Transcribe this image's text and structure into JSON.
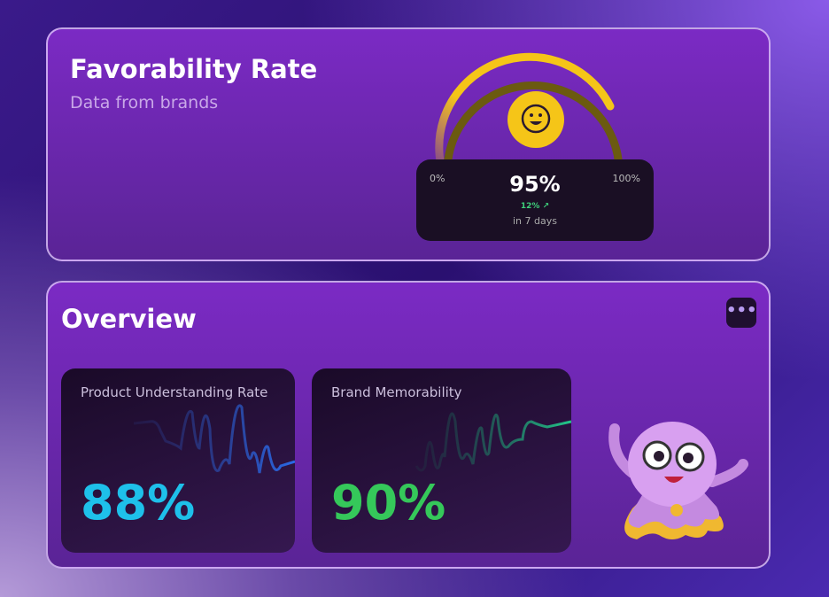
{
  "favorability": {
    "title": "Favorability Rate",
    "subtitle": "Data from brands",
    "value": "95%",
    "value_percent": 95,
    "min_label": "0%",
    "max_label": "100%",
    "delta": "12% ↗",
    "period": "in 7 days",
    "face_icon": "smiley-icon",
    "accent": "#f5c518"
  },
  "overview": {
    "title": "Overview",
    "more_icon": "•••",
    "metrics": [
      {
        "label": "Product Understanding Rate",
        "value": "88%",
        "color": "#1ec0ea",
        "line": "#2a6ae8"
      },
      {
        "label": "Brand Memorability",
        "value": "90%",
        "color": "#35c85a",
        "line": "#22b87a"
      }
    ]
  }
}
